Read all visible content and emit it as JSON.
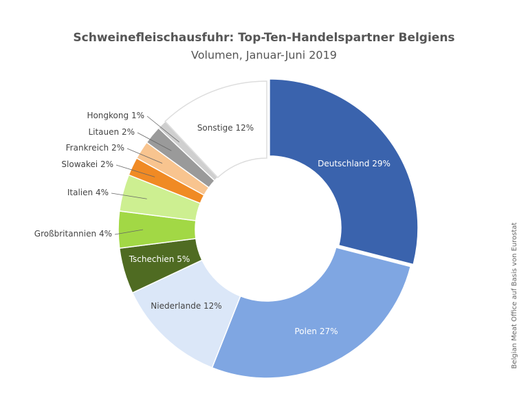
{
  "chart_data": {
    "type": "donut",
    "title": "Schweinefleischausfuhr: Top-Ten-Handelspartner Belgiens",
    "subtitle": "Volumen, Januar-Juni 2019",
    "source": "Belgian Meat Office auf Basis von Eurostat",
    "categories": [
      "Deutschland",
      "Polen",
      "Niederlande",
      "Tschechien",
      "Großbritannien",
      "Italien",
      "Slowakei",
      "Frankreich",
      "Litauen",
      "Hongkong",
      "Sonstige"
    ],
    "values": [
      29,
      27,
      12,
      5,
      4,
      4,
      2,
      2,
      2,
      1,
      12
    ],
    "value_labels": [
      "29%",
      "27%",
      "12%",
      "5%",
      "4%",
      "4%",
      "2%",
      "2%",
      "2%",
      "1%",
      "12%"
    ],
    "colors": [
      "#3a63ad",
      "#7fa6e2",
      "#dbe7f8",
      "#4f6b22",
      "#a2d845",
      "#cdef91",
      "#f08a24",
      "#f8c48f",
      "#9a9a9a",
      "#cfcfcf",
      "#ffffff"
    ]
  }
}
